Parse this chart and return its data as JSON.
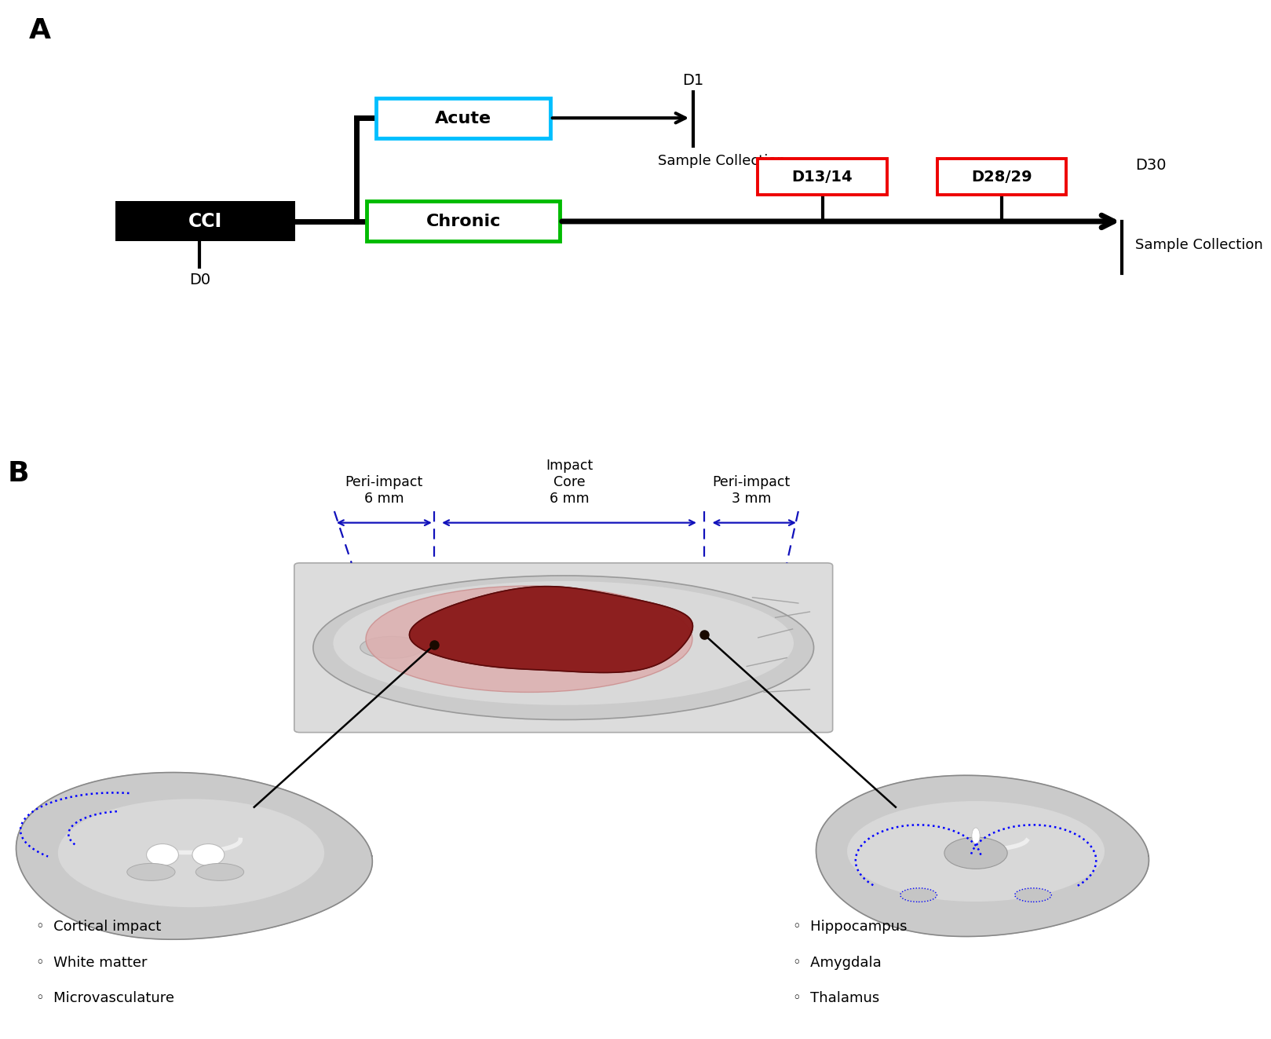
{
  "panel_A_label": "A",
  "panel_B_label": "B",
  "cci_label": "CCI",
  "acute_label": "Acute",
  "chronic_label": "Chronic",
  "d0_label": "D0",
  "d1_label": "D1",
  "d13_label": "D13/14",
  "d28_label": "D28/29",
  "d30_label": "D30",
  "sample_collection_acute": "Sample Collection",
  "sample_collection_chronic": "Sample Collection",
  "peri_impact_left_label": "Peri-impact\n6 mm",
  "impact_core_label": "Impact\nCore\n6 mm",
  "peri_impact_right_label": "Peri-impact\n3 mm",
  "left_brain_labels": [
    "Cortical impact",
    "White matter",
    "Microvasculature"
  ],
  "right_brain_labels": [
    "Hippocampus",
    "Amygdala",
    "Thalamus"
  ],
  "blue_border_color": "#00BFFF",
  "green_border_color": "#00BB00",
  "red_border_color": "#EE0000",
  "dark_red_color": "#8B1A1A",
  "light_red_color": "#DDB0B0",
  "blue_dashed_color": "#1111BB",
  "brain_grey_color": "#CACACA",
  "brain_mid_grey": "#D8D8D8",
  "brain_light_grey": "#E5E5E5"
}
